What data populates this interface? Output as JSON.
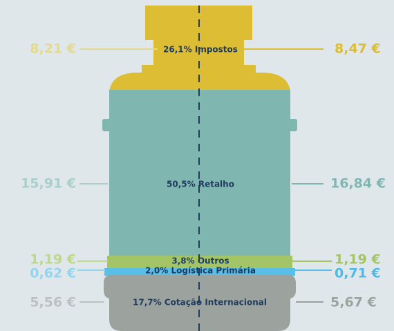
{
  "segments": [
    {
      "left": "8,21 €",
      "label": "26,1% Impostos",
      "right": "8,47 €"
    },
    {
      "left": "15,91 €",
      "label": "50,5% Retalho",
      "right": "16,84 €"
    },
    {
      "left": "1,19 €",
      "label": "3,8% Outros",
      "right": "1,19 €"
    },
    {
      "left": "0,62 €",
      "label": "2,0% Logística Primária",
      "right": "0,71 €"
    },
    {
      "left": "5,56 €",
      "label": "17,7% Cotação Internacional",
      "right": "5,67 €"
    }
  ]
}
